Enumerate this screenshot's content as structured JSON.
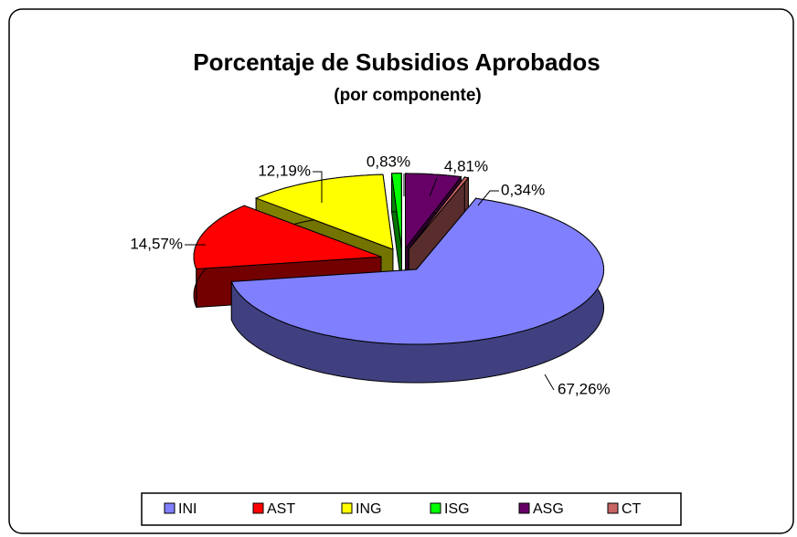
{
  "chart_data": {
    "type": "pie",
    "title": "Porcentaje de Subsidios Aprobados",
    "subtitle": "(por componente)",
    "categories": [
      "INI",
      "AST",
      "ING",
      "ISG",
      "ASG",
      "CT"
    ],
    "values": [
      67.26,
      14.57,
      12.19,
      0.83,
      4.81,
      0.34
    ],
    "value_labels": [
      "67,26%",
      "14,57%",
      "12,19%",
      "0,83%",
      "4,81%",
      "0,34%"
    ],
    "colors": [
      "#8080ff",
      "#ff0000",
      "#ffff00",
      "#00ff00",
      "#660066",
      "#c86464"
    ],
    "legend": "bottom"
  }
}
